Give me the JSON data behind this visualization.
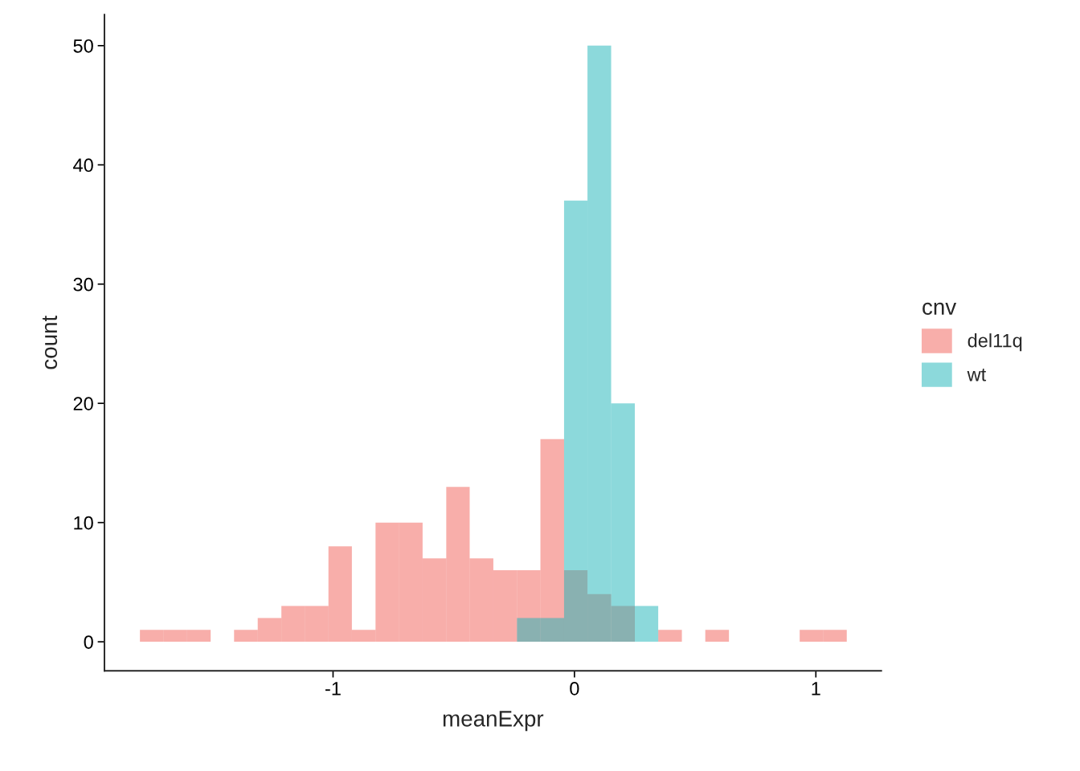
{
  "chart_data": {
    "type": "histogram",
    "xlabel": "meanExpr",
    "ylabel": "count",
    "legend_title": "cnv",
    "bins": [
      -1.8,
      -1.702,
      -1.605,
      -1.507,
      -1.41,
      -1.312,
      -1.214,
      -1.117,
      -1.019,
      -0.922,
      -0.824,
      -0.726,
      -0.629,
      -0.531,
      -0.434,
      -0.336,
      -0.238,
      -0.141,
      -0.043,
      0.054,
      0.152,
      0.25,
      0.347,
      0.445,
      0.542,
      0.64,
      0.738,
      0.835,
      0.933,
      1.03,
      1.128
    ],
    "series": [
      {
        "name": "del11q",
        "color": "#f8aeaa",
        "values": [
          1,
          1,
          1,
          0,
          1,
          2,
          3,
          3,
          8,
          1,
          10,
          10,
          7,
          13,
          7,
          6,
          6,
          17,
          6,
          4,
          3,
          0,
          1,
          0,
          1,
          0,
          0,
          0,
          1,
          1
        ]
      },
      {
        "name": "wt",
        "color": "#8cd9db",
        "values": [
          0,
          0,
          0,
          0,
          0,
          0,
          0,
          0,
          0,
          0,
          0,
          0,
          0,
          0,
          0,
          0,
          2,
          2,
          37,
          50,
          20,
          3,
          0,
          0,
          0,
          0,
          0,
          0,
          0,
          0
        ]
      }
    ],
    "xlim": [
      -1.947,
      1.271
    ],
    "ylim": [
      -2.43,
      52.6
    ],
    "xticks": [
      -1,
      0,
      1
    ],
    "yticks": [
      0,
      10,
      20,
      30,
      40,
      50
    ],
    "grid": false,
    "legend": "right"
  }
}
